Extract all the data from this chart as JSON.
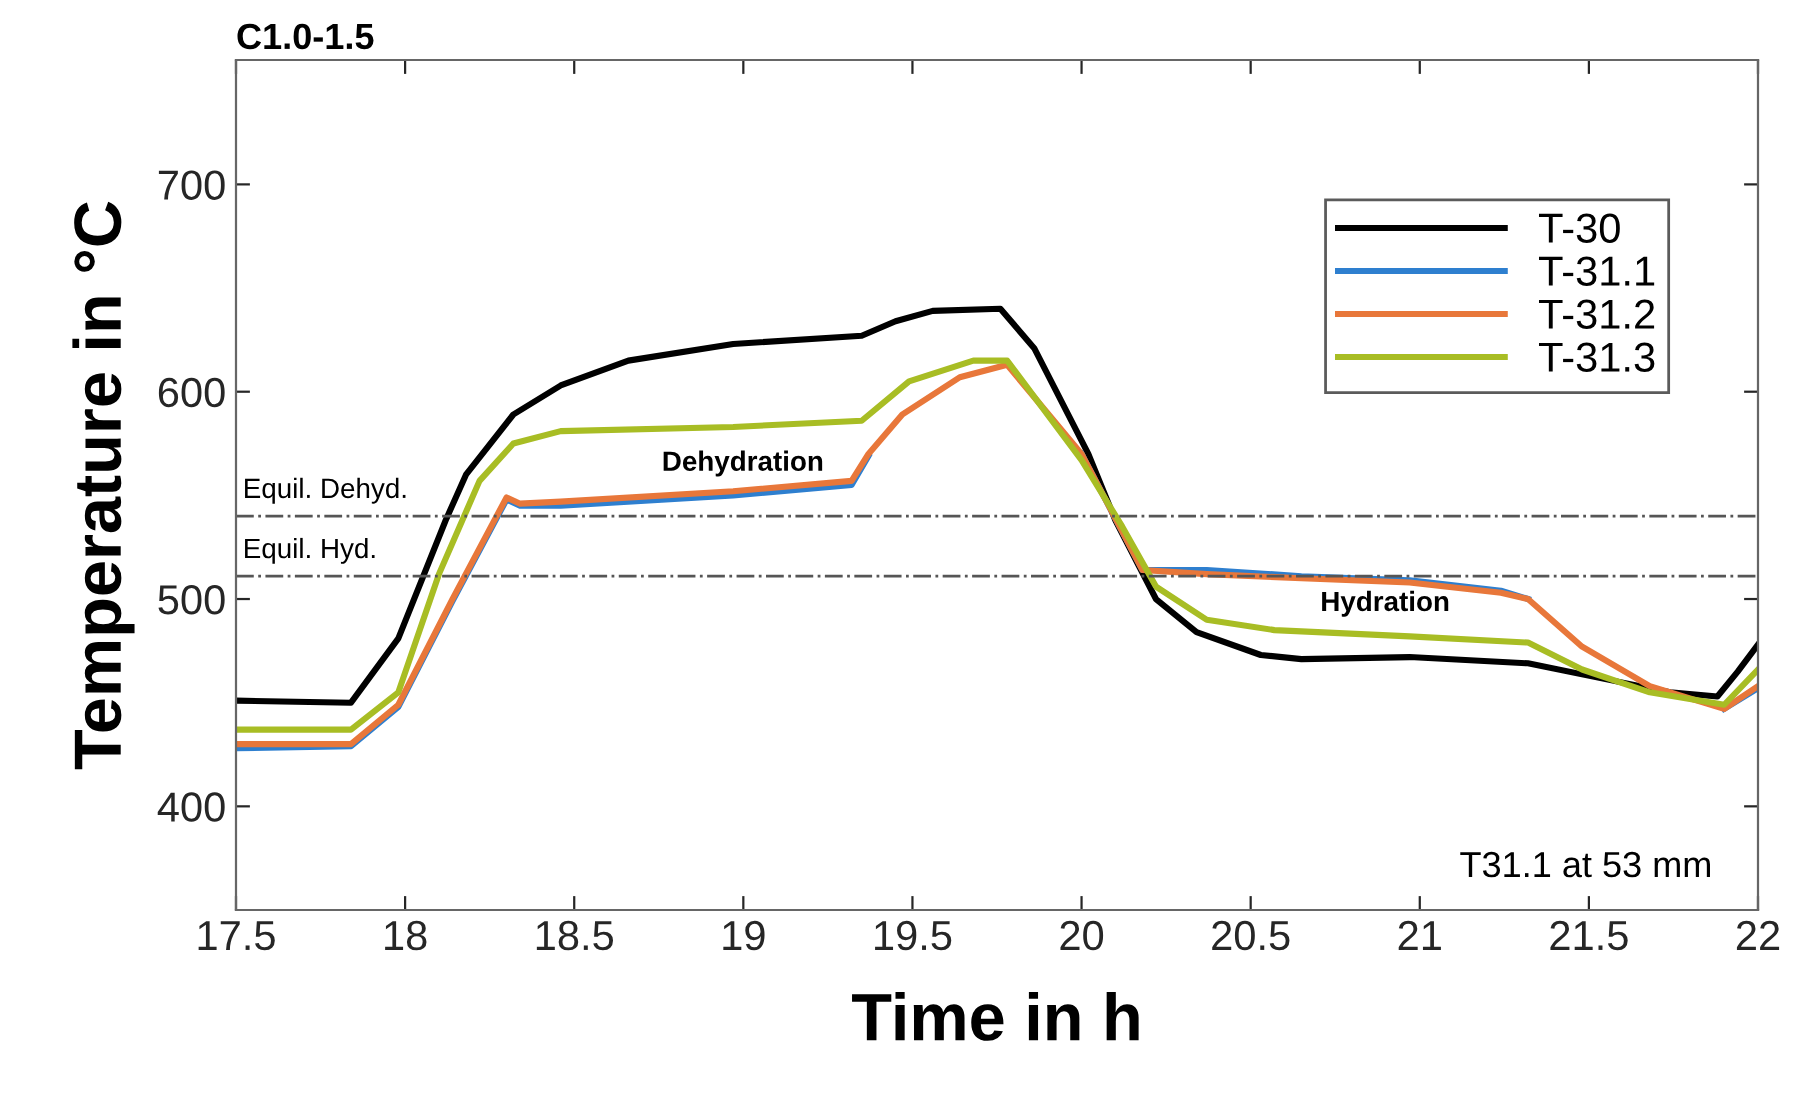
{
  "chart_data": {
    "type": "line",
    "title": "C1.0-1.5",
    "xlabel": "Time in h",
    "ylabel": "Temperature in °C",
    "xlim": [
      17.5,
      22
    ],
    "xticks": [
      17.5,
      18,
      18.5,
      19,
      19.5,
      20,
      20.5,
      21,
      21.5,
      22
    ],
    "ylim": [
      350,
      760
    ],
    "yticks": [
      400,
      500,
      600,
      700
    ],
    "grid": false,
    "legend": "top right",
    "marker": "none",
    "line_style": "solid",
    "series": [
      {
        "name": "T-30",
        "color": "#000000",
        "x": [
          17.5,
          17.84,
          17.98,
          18.12,
          18.18,
          18.32,
          18.46,
          18.66,
          18.97,
          19.35,
          19.45,
          19.56,
          19.76,
          19.86,
          20.02,
          20.1,
          20.22,
          20.34,
          20.53,
          20.65,
          20.97,
          21.32,
          21.56,
          21.74,
          21.88,
          21.94,
          22.0
        ],
        "values": [
          451,
          450,
          481,
          538,
          560,
          589,
          603,
          615,
          623,
          627,
          634,
          639,
          640,
          621,
          570,
          538,
          500,
          484,
          473,
          471,
          472,
          469,
          461,
          455,
          453,
          465,
          478
        ]
      },
      {
        "name": "T-31.1",
        "color": "#2e7fcf",
        "x": [
          17.5,
          17.84,
          17.98,
          18.14,
          18.3,
          18.34,
          18.46,
          18.97,
          19.32,
          19.37,
          19.47,
          19.64,
          19.78,
          20.0,
          20.18,
          20.3,
          20.37,
          20.65,
          20.97,
          21.24,
          21.32,
          21.48,
          21.68,
          21.9,
          22.0
        ],
        "values": [
          428,
          429,
          448,
          499,
          548,
          545,
          545,
          550,
          555,
          569,
          null,
          null,
          null,
          570,
          514,
          514,
          514,
          511,
          509,
          504,
          500,
          null,
          null,
          447,
          457
        ]
      },
      {
        "name": "T-31.2",
        "color": "#e8773a",
        "x": [
          17.5,
          17.84,
          17.98,
          18.14,
          18.3,
          18.34,
          18.46,
          18.97,
          19.32,
          19.37,
          19.47,
          19.64,
          19.78,
          20.0,
          20.18,
          20.37,
          20.65,
          20.97,
          21.24,
          21.32,
          21.48,
          21.68,
          21.9,
          22.0
        ],
        "values": [
          430,
          430,
          449,
          500,
          549,
          546,
          547,
          552,
          557,
          570,
          589,
          607,
          613,
          570,
          514,
          512,
          510,
          508,
          503,
          500,
          477,
          458,
          447,
          458
        ]
      },
      {
        "name": "T-31.3",
        "color": "#a8bd24",
        "x": [
          17.5,
          17.84,
          17.98,
          18.1,
          18.22,
          18.32,
          18.46,
          18.97,
          19.35,
          19.49,
          19.68,
          19.78,
          20.0,
          20.12,
          20.22,
          20.37,
          20.57,
          20.97,
          21.32,
          21.48,
          21.68,
          21.9,
          22.0
        ],
        "values": [
          437,
          437,
          455,
          512,
          557,
          575,
          581,
          583,
          586,
          605,
          615,
          615,
          567,
          535,
          506,
          490,
          485,
          482,
          479,
          466,
          455,
          449,
          466
        ]
      }
    ],
    "ref_lines": [
      {
        "axis": "y",
        "value": 540,
        "label": "Equil. Dehyd.",
        "color": "#555555",
        "line_style": "dashdot"
      },
      {
        "axis": "y",
        "value": 511,
        "label": "Equil. Hyd.",
        "color": "#555555",
        "line_style": "dashdot"
      }
    ],
    "annotations": [
      "Dehydration",
      "Hydration",
      "T31.1 at 53 mm"
    ]
  }
}
